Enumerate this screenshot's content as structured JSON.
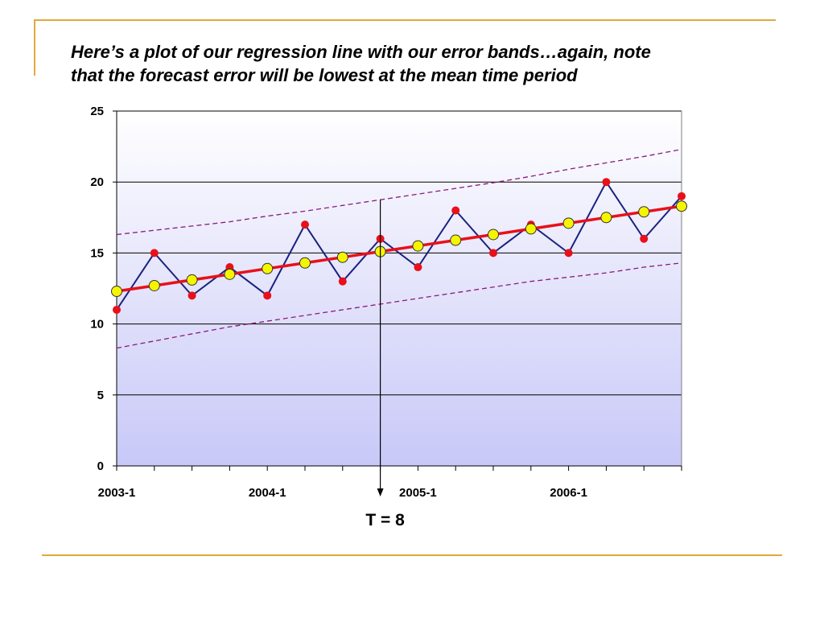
{
  "slide": {
    "title_line1": "Here’s a plot of our regression line with our error bands…again, note",
    "title_line2": "that the forecast error will be lowest at the mean time period",
    "accent_color": "#e0a93a"
  },
  "chart_data": {
    "type": "line",
    "x": [
      1,
      2,
      3,
      4,
      5,
      6,
      7,
      8,
      9,
      10,
      11,
      12,
      13,
      14,
      15,
      16
    ],
    "x_tick_labels": [
      {
        "x": 1,
        "label": "2003-1"
      },
      {
        "x": 5,
        "label": "2004-1"
      },
      {
        "x": 9,
        "label": "2005-1"
      },
      {
        "x": 13,
        "label": "2006-1"
      }
    ],
    "ylim": [
      0,
      25
    ],
    "y_ticks": [
      0,
      5,
      10,
      15,
      20,
      25
    ],
    "grid": true,
    "series": [
      {
        "role": "actual",
        "marker": "red-dot",
        "color": "#e8101a",
        "values": [
          11,
          15,
          12,
          14,
          12,
          17,
          13,
          16,
          14,
          18,
          15,
          17,
          15,
          20,
          16,
          19
        ]
      },
      {
        "role": "fitted",
        "marker": "yellow-circle",
        "color": "#f5f500",
        "values": [
          12.3,
          12.7,
          13.1,
          13.5,
          13.9,
          14.3,
          14.7,
          15.1,
          15.5,
          15.9,
          16.3,
          16.7,
          17.1,
          17.5,
          17.9,
          18.3
        ]
      },
      {
        "role": "upper-band",
        "style": "dashed",
        "color": "#8b1a7a",
        "values": [
          16.3,
          16.6,
          16.9,
          17.2,
          17.6,
          17.95,
          18.35,
          18.75,
          19.15,
          19.55,
          19.95,
          20.4,
          20.9,
          21.35,
          21.8,
          22.3
        ]
      },
      {
        "role": "lower-band",
        "style": "dashed",
        "color": "#8b1a7a",
        "values": [
          8.3,
          8.8,
          9.3,
          9.8,
          10.2,
          10.6,
          11.0,
          11.4,
          11.8,
          12.2,
          12.6,
          13.0,
          13.3,
          13.6,
          14.0,
          14.3
        ]
      }
    ],
    "regression_color": "#e8101a",
    "actual_line_color": "#1a237e",
    "marker_line": {
      "x": 8,
      "label": "T = 8"
    }
  }
}
